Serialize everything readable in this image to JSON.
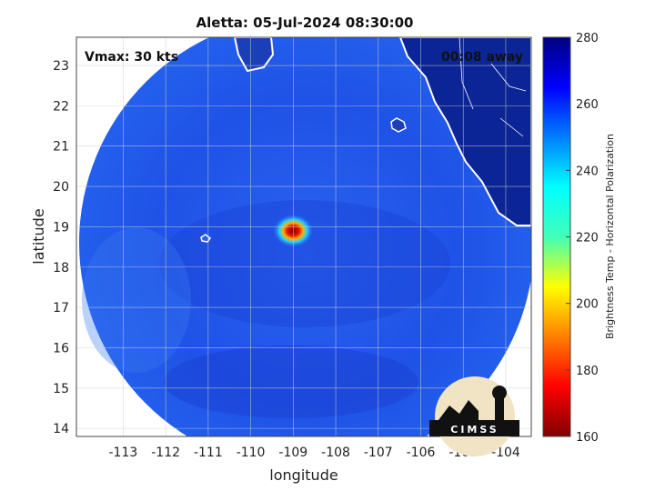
{
  "title": "Aletta: 05-Jul-2024 08:30:00",
  "vmax_label": "Vmax: 30 kts",
  "time_away_label": "00:08 away",
  "x_axis": {
    "label": "longitude",
    "ticks": [
      -113,
      -112,
      -111,
      -110,
      -109,
      -108,
      -107,
      -106,
      -105,
      -104
    ],
    "range": [
      -114.1,
      -103.4
    ]
  },
  "y_axis": {
    "label": "latitude",
    "ticks": [
      14,
      15,
      16,
      17,
      18,
      19,
      20,
      21,
      22,
      23
    ],
    "range": [
      13.8,
      23.7
    ]
  },
  "colorbar": {
    "label": "Brightness Temp - Horizontal Polarization",
    "ticks": [
      280,
      260,
      240,
      220,
      200,
      180,
      160
    ],
    "range": [
      160,
      280
    ],
    "colormap": "jet"
  },
  "storm_center": {
    "lon": -109.0,
    "lat": 18.9
  },
  "logo": {
    "text": "CIMSS"
  },
  "colors": {
    "background_scene": "#1f53ea",
    "land": "#0c2596",
    "coastline": "#ffffff",
    "grid": "#cfcfcf"
  }
}
